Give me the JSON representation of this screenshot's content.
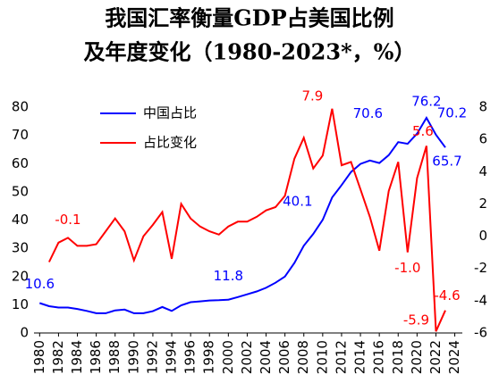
{
  "chart_data": {
    "type": "line",
    "title": [
      "我国汇率衡量GDP占美国比例",
      "及年度变化（1980-2023*，%）"
    ],
    "x": [
      1980,
      1981,
      1982,
      1983,
      1984,
      1985,
      1986,
      1987,
      1988,
      1989,
      1990,
      1991,
      1992,
      1993,
      1994,
      1995,
      1996,
      1997,
      1998,
      1999,
      2000,
      2001,
      2002,
      2003,
      2004,
      2005,
      2006,
      2007,
      2008,
      2009,
      2010,
      2011,
      2012,
      2013,
      2014,
      2015,
      2016,
      2017,
      2018,
      2019,
      2020,
      2021,
      2022,
      2023
    ],
    "series": [
      {
        "name": "中国占比",
        "color": "#0000ff",
        "axis": "y",
        "values": [
          10.6,
          9.5,
          9.0,
          9.0,
          8.5,
          7.8,
          7.0,
          7.0,
          8.0,
          8.3,
          7.0,
          7.0,
          7.7,
          9.2,
          7.8,
          9.8,
          10.9,
          11.2,
          11.5,
          11.6,
          11.8,
          12.7,
          13.7,
          14.7,
          16.0,
          17.8,
          20.0,
          24.8,
          30.9,
          35.1,
          40.1,
          48.0,
          52.4,
          57.0,
          59.9,
          61.1,
          60.2,
          63.0,
          67.6,
          67.0,
          70.6,
          76.2,
          70.2,
          65.7
        ],
        "value_labels": [
          "10.6",
          null,
          null,
          null,
          null,
          null,
          null,
          null,
          null,
          null,
          null,
          null,
          null,
          null,
          null,
          null,
          null,
          null,
          null,
          null,
          "11.8",
          null,
          null,
          null,
          null,
          null,
          null,
          null,
          null,
          null,
          "40.1",
          null,
          null,
          null,
          null,
          null,
          null,
          null,
          null,
          null,
          "70.6",
          "76.2",
          "70.2",
          "65.7"
        ]
      },
      {
        "name": "占比变化",
        "color": "#ff0000",
        "axis": "y2",
        "values": [
          null,
          -1.6,
          -0.4,
          -0.1,
          -0.6,
          -0.6,
          -0.5,
          0.3,
          1.1,
          0.3,
          -1.5,
          0.0,
          0.7,
          1.5,
          -1.4,
          2.0,
          1.1,
          0.6,
          0.3,
          0.1,
          0.6,
          0.9,
          0.9,
          1.2,
          1.6,
          1.8,
          2.5,
          4.8,
          6.1,
          4.2,
          5.0,
          7.9,
          4.4,
          4.6,
          2.9,
          1.2,
          -0.9,
          2.8,
          4.6,
          -1.0,
          3.6,
          5.6,
          -5.9,
          -4.6
        ],
        "value_labels": [
          null,
          null,
          null,
          "-0.1",
          null,
          null,
          null,
          null,
          null,
          null,
          null,
          null,
          null,
          null,
          null,
          null,
          null,
          null,
          null,
          null,
          null,
          null,
          null,
          null,
          null,
          null,
          null,
          null,
          null,
          null,
          null,
          "7.9",
          null,
          null,
          null,
          null,
          null,
          null,
          null,
          "-1.0",
          null,
          "5.6",
          "-5.9",
          "-4.6"
        ]
      }
    ],
    "xlim": [
      1979.4,
      2024.8
    ],
    "xticks": [
      1980,
      1982,
      1984,
      1986,
      1988,
      1990,
      1992,
      1994,
      1996,
      1998,
      2000,
      2002,
      2004,
      2006,
      2008,
      2010,
      2012,
      2014,
      2016,
      2018,
      2020,
      2022,
      2024
    ],
    "ylim": [
      0,
      80
    ],
    "yticks": [
      0,
      10,
      20,
      30,
      40,
      50,
      60,
      70,
      80
    ],
    "y2lim": [
      -6,
      8
    ],
    "y2ticks": [
      -6,
      -4,
      -2,
      0,
      2,
      4,
      6,
      8
    ],
    "legend": "upper left",
    "grid": false
  }
}
